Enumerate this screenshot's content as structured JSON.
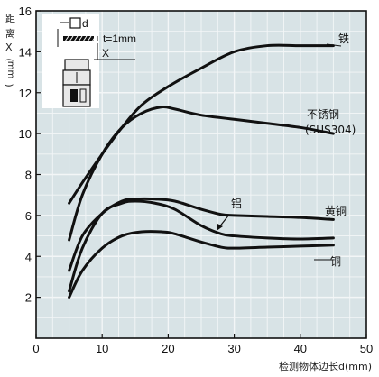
{
  "chart_data": {
    "type": "line",
    "title": "",
    "ylabel_chars": [
      "距",
      "离",
      "X",
      "(",
      "mm",
      ")"
    ],
    "xlabel": "检测物体边长d(mm)",
    "xlim": [
      0,
      50
    ],
    "ylim": [
      0,
      16
    ],
    "xticks": [
      0,
      10,
      20,
      30,
      40,
      50
    ],
    "yticks": [
      2,
      4,
      6,
      8,
      10,
      12,
      14,
      16
    ],
    "grid": true,
    "series": [
      {
        "name": "铁",
        "x": [
          5,
          7,
          10,
          13,
          16,
          20,
          25,
          30,
          35,
          40,
          45
        ],
        "y": [
          6.6,
          7.6,
          9.0,
          10.3,
          11.4,
          12.3,
          13.2,
          14.0,
          14.3,
          14.3,
          14.3
        ]
      },
      {
        "name": "不锈钢 (SUS304)",
        "x": [
          5,
          7,
          10,
          13,
          16,
          19,
          21,
          25,
          30,
          35,
          40,
          45
        ],
        "y": [
          4.8,
          7.0,
          9.0,
          10.3,
          11.0,
          11.3,
          11.2,
          10.9,
          10.7,
          10.5,
          10.3,
          10.0
        ]
      },
      {
        "name": "黄铜",
        "x": [
          5,
          7,
          10,
          13,
          15,
          18,
          21,
          25,
          28,
          30,
          35,
          40,
          45
        ],
        "y": [
          3.3,
          5.0,
          6.1,
          6.7,
          6.8,
          6.8,
          6.7,
          6.3,
          6.05,
          6.0,
          5.95,
          5.9,
          5.8
        ]
      },
      {
        "name": "铝",
        "x": [
          5,
          7,
          10,
          13,
          15,
          18,
          21,
          25,
          28,
          30,
          35,
          40,
          45
        ],
        "y": [
          2.3,
          4.4,
          6.1,
          6.6,
          6.7,
          6.6,
          6.3,
          5.5,
          5.1,
          5.0,
          4.9,
          4.85,
          4.9
        ]
      },
      {
        "name": "铜",
        "x": [
          5,
          7,
          10,
          13,
          16,
          19,
          21,
          25,
          28,
          30,
          35,
          40,
          45
        ],
        "y": [
          2.0,
          3.3,
          4.4,
          5.0,
          5.2,
          5.2,
          5.1,
          4.7,
          4.45,
          4.4,
          4.45,
          4.5,
          4.55
        ]
      }
    ],
    "annotations": {
      "d_label": "d",
      "t_label": "t=1mm",
      "x_label": "X"
    }
  },
  "colors": {
    "background": "#d8e3e6",
    "grid": "#f3f6f7",
    "line": "#111111",
    "axis": "#111111"
  }
}
